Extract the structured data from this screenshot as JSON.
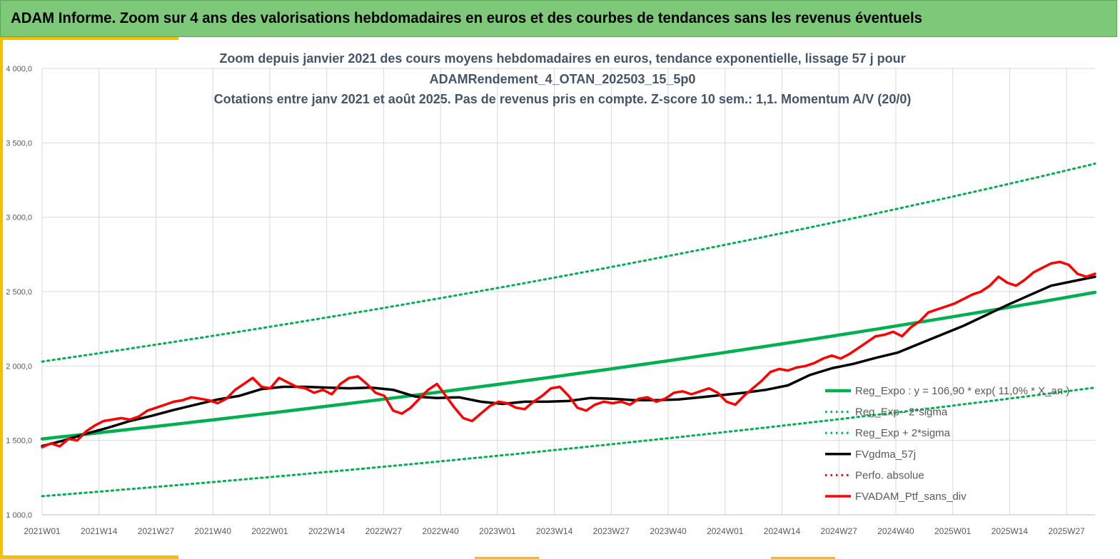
{
  "header": {
    "title": "ADAM Informe. Zoom sur 4 ans des valorisations hebdomadaires en euros et des courbes de tendances sans les revenus éventuels"
  },
  "colors": {
    "header_bg": "#7ec87a",
    "accent": "#f2c200",
    "trend": "#00b050",
    "smooth": "#000000",
    "portfolio": "#ff0000",
    "grid": "#d9d9d9"
  },
  "chart_data": {
    "type": "line",
    "title_lines": [
      "Zoom depuis janvier 2021 des cours moyens hebdomadaires  en euros, tendance exponentielle, lissage 57 j pour",
      "ADAMRendement_4_OTAN_202503_15_5p0",
      "Cotations  entre janv 2021 et août 2025. Pas de revenus pris en compte. Z-score 10 sem.: 1,1. Momentum A/V (20/0)"
    ],
    "ylim": [
      1000,
      4000
    ],
    "yticks": [
      "1 000,0",
      "1 500,0",
      "2 000,0",
      "2 500,0",
      "3 000,0",
      "3 500,0",
      "4 000,0"
    ],
    "xticks": [
      "2021W01",
      "2021W14",
      "2021W27",
      "2021W40",
      "2022W01",
      "2022W14",
      "2022W27",
      "2022W40",
      "2023W01",
      "2023W14",
      "2023W27",
      "2023W40",
      "2024W01",
      "2024W14",
      "2024W27",
      "2024W40",
      "2025W01",
      "2025W14",
      "2025W27"
    ],
    "legend_position": "bottom-right",
    "grid": true,
    "series": [
      {
        "name": "Reg_Expo : y = 106,90 * exp( 11,0% * X_an )",
        "style": "solid-green",
        "x": [
          0,
          240
        ],
        "values": [
          1510,
          2495
        ]
      },
      {
        "name": "Reg_Exp - 2*sigma",
        "style": "dotted-green",
        "x": [
          0,
          240
        ],
        "values": [
          1125,
          1855
        ]
      },
      {
        "name": "Reg_Exp + 2*sigma",
        "style": "dotted-green",
        "x": [
          0,
          240
        ],
        "values": [
          2030,
          3360
        ]
      },
      {
        "name": "FVgdma_57j",
        "style": "solid-black",
        "x": [
          0,
          5,
          10,
          15,
          20,
          25,
          30,
          35,
          40,
          45,
          50,
          55,
          60,
          65,
          70,
          75,
          80,
          85,
          90,
          95,
          100,
          105,
          110,
          115,
          120,
          125,
          130,
          135,
          140,
          145,
          150,
          155,
          160,
          165,
          170,
          175,
          180,
          185,
          190,
          195,
          200,
          205,
          210,
          215,
          220,
          225,
          230,
          235,
          240
        ],
        "values": [
          1462,
          1500,
          1545,
          1585,
          1630,
          1665,
          1705,
          1740,
          1775,
          1800,
          1845,
          1860,
          1860,
          1855,
          1850,
          1855,
          1840,
          1795,
          1785,
          1790,
          1760,
          1745,
          1760,
          1760,
          1765,
          1785,
          1780,
          1770,
          1770,
          1775,
          1790,
          1805,
          1820,
          1840,
          1870,
          1940,
          1985,
          2015,
          2055,
          2090,
          2150,
          2210,
          2270,
          2340,
          2410,
          2475,
          2540,
          2570,
          2600
        ]
      },
      {
        "name": "Perfo. absolue",
        "style": "dotted-red",
        "x": [],
        "values": []
      },
      {
        "name": "FVADAM_Ptf_sans_div",
        "style": "solid-red",
        "x": [
          0,
          2,
          4,
          6,
          8,
          10,
          12,
          14,
          16,
          18,
          20,
          22,
          24,
          26,
          28,
          30,
          32,
          34,
          36,
          38,
          40,
          42,
          44,
          46,
          48,
          50,
          52,
          54,
          56,
          58,
          60,
          62,
          64,
          66,
          68,
          70,
          72,
          74,
          76,
          78,
          80,
          82,
          84,
          86,
          88,
          90,
          92,
          94,
          96,
          98,
          100,
          102,
          104,
          106,
          108,
          110,
          112,
          114,
          116,
          118,
          120,
          122,
          124,
          126,
          128,
          130,
          132,
          134,
          136,
          138,
          140,
          142,
          144,
          146,
          148,
          150,
          152,
          154,
          156,
          158,
          160,
          162,
          164,
          166,
          168,
          170,
          172,
          174,
          176,
          178,
          180,
          182,
          184,
          186,
          188,
          190,
          192,
          194,
          196,
          198,
          200,
          202,
          204,
          206,
          208,
          210,
          212,
          214,
          216,
          218,
          220,
          222,
          224,
          226,
          228,
          230,
          232,
          234,
          236,
          238,
          240
        ],
        "values": [
          1455,
          1480,
          1460,
          1510,
          1500,
          1560,
          1600,
          1630,
          1640,
          1650,
          1640,
          1660,
          1700,
          1720,
          1740,
          1760,
          1770,
          1790,
          1780,
          1770,
          1750,
          1780,
          1840,
          1880,
          1920,
          1860,
          1850,
          1920,
          1890,
          1860,
          1850,
          1820,
          1840,
          1810,
          1880,
          1920,
          1930,
          1880,
          1820,
          1800,
          1700,
          1680,
          1720,
          1780,
          1840,
          1880,
          1800,
          1720,
          1650,
          1630,
          1680,
          1730,
          1760,
          1750,
          1720,
          1710,
          1760,
          1800,
          1850,
          1860,
          1800,
          1720,
          1700,
          1740,
          1760,
          1750,
          1760,
          1740,
          1780,
          1790,
          1760,
          1780,
          1820,
          1830,
          1810,
          1830,
          1850,
          1820,
          1760,
          1740,
          1800,
          1850,
          1900,
          1960,
          1980,
          1970,
          1990,
          2000,
          2020,
          2050,
          2070,
          2050,
          2080,
          2120,
          2160,
          2200,
          2210,
          2230,
          2200,
          2260,
          2300,
          2360,
          2380,
          2400,
          2420,
          2450,
          2480,
          2500,
          2540,
          2600,
          2560,
          2540,
          2580,
          2630,
          2660,
          2690,
          2700,
          2680,
          2620,
          2600,
          2620
        ]
      }
    ]
  }
}
